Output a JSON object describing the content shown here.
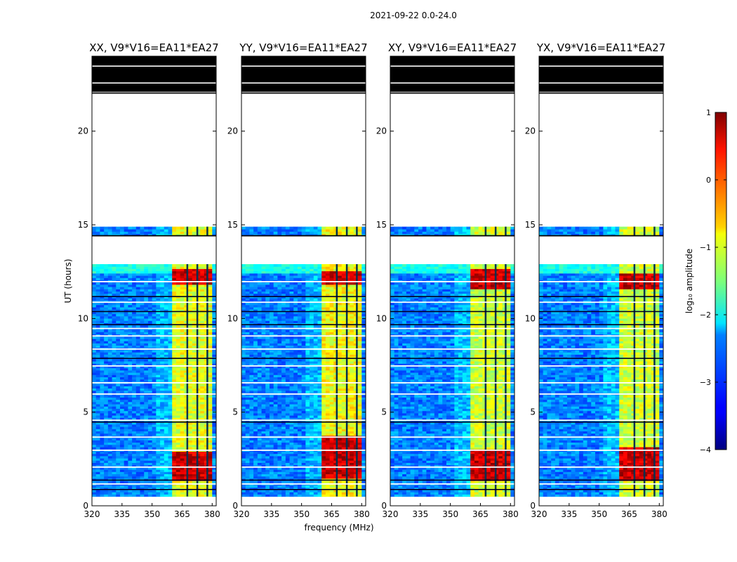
{
  "figure": {
    "suptitle": "2021-09-22 0.0-24.0"
  },
  "chart_data": {
    "type": "heatmap",
    "title": "2021-09-22 0.0-24.0",
    "xlabel": "frequency (MHz)",
    "ylabel": "UT (hours)",
    "xlim": [
      320,
      382
    ],
    "ylim": [
      0,
      24
    ],
    "xticks": [
      "320",
      "335",
      "350",
      "365",
      "380"
    ],
    "xtick_values": [
      320,
      335,
      350,
      365,
      380
    ],
    "yticks": [
      "0",
      "5",
      "10",
      "15",
      "20"
    ],
    "ytick_values": [
      0,
      5,
      10,
      15,
      20
    ],
    "colorbar": {
      "label": "log₁₀ amplitude",
      "range": [
        -4,
        1
      ],
      "ticks": [
        "1",
        "0",
        "−1",
        "−2",
        "−3",
        "−4"
      ],
      "tick_values": [
        1,
        0,
        -1,
        -2,
        -3,
        -4
      ],
      "colormap": "jet"
    },
    "data_regions": [
      {
        "ut_start": 0.5,
        "ut_end": 12.9,
        "description": "observed"
      },
      {
        "ut_start": 14.4,
        "ut_end": 14.9,
        "description": "observed"
      },
      {
        "ut_start": 22.0,
        "ut_end": 24.0,
        "description": "flagged/black"
      }
    ],
    "rfi_band_mhz": [
      361,
      380
    ],
    "panels": [
      {
        "title": "XX, V9*V16=EA11*EA27",
        "band_level": 0.6,
        "hot_rows": [
          [
            1.3,
            2.9
          ],
          [
            11.8,
            12.7
          ]
        ]
      },
      {
        "title": "YY, V9*V16=EA11*EA27",
        "band_level": 0.62,
        "hot_rows": [
          [
            1.5,
            3.8
          ],
          [
            11.8,
            12.5
          ]
        ]
      },
      {
        "title": "XY, V9*V16=EA11*EA27",
        "band_level": 0.58,
        "hot_rows": [
          [
            1.3,
            3.0
          ],
          [
            11.6,
            12.6
          ]
        ]
      },
      {
        "title": "YX, V9*V16=EA11*EA27",
        "band_level": 0.58,
        "hot_rows": [
          [
            1.3,
            3.2
          ],
          [
            11.6,
            12.4
          ]
        ]
      }
    ]
  }
}
